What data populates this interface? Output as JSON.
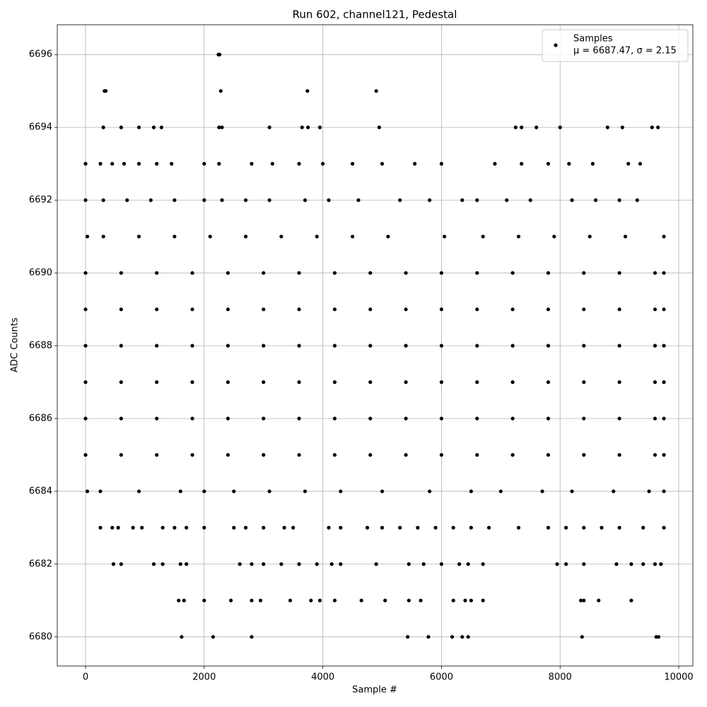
{
  "chart_data": {
    "type": "scatter",
    "title": "Run 602, channel121, Pedestal",
    "x_label": "Sample #",
    "y_label": "ADC Counts",
    "xlim": [
      -477,
      10238
    ],
    "ylim": [
      6679.2,
      6696.82
    ],
    "xticks": [
      0,
      2000,
      4000,
      6000,
      8000,
      10000
    ],
    "yticks": [
      6680,
      6682,
      6684,
      6686,
      6688,
      6690,
      6692,
      6694,
      6696
    ],
    "grid": true,
    "legend_position": "upper right",
    "legend_note": "μ = 6687.47, σ = 2.15",
    "series": [
      {
        "name": "Samples",
        "color": "#000000",
        "x": [
          0,
          600,
          1200,
          1800,
          2400,
          3000,
          3600,
          4200,
          4800,
          5400,
          6000,
          6600,
          7200,
          7800,
          8400,
          9000,
          9600,
          9750,
          0,
          600,
          1200,
          1800,
          2400,
          3000,
          3600,
          4200,
          4800,
          5400,
          6000,
          6600,
          7200,
          7800,
          8400,
          9000,
          9600,
          9750,
          0,
          600,
          1200,
          1800,
          2400,
          3000,
          3600,
          4200,
          4800,
          5400,
          6000,
          6600,
          7200,
          7800,
          8400,
          9000,
          9600,
          9750,
          0,
          600,
          1200,
          1800,
          2400,
          3000,
          3600,
          4200,
          4800,
          5400,
          6000,
          6600,
          7200,
          7800,
          8400,
          9000,
          9600,
          9750,
          0,
          600,
          1200,
          1800,
          2400,
          3000,
          3600,
          4200,
          4800,
          5400,
          6000,
          6600,
          7200,
          7800,
          8400,
          9000,
          9600,
          9750,
          0,
          600,
          1200,
          1800,
          2400,
          3000,
          3600,
          4200,
          4800,
          5400,
          6000,
          6600,
          7200,
          7800,
          8400,
          9000,
          9600,
          9750,
          30,
          300,
          900,
          1500,
          2100,
          2700,
          3300,
          3900,
          4500,
          5100,
          6050,
          6700,
          7300,
          7900,
          8500,
          9100,
          9750,
          30,
          250,
          900,
          1600,
          2000,
          2500,
          3100,
          3700,
          4300,
          5000,
          5800,
          6500,
          7000,
          7700,
          8200,
          8900,
          9500,
          9750,
          0,
          300,
          700,
          1100,
          1500,
          2000,
          2300,
          2700,
          3100,
          3700,
          4100,
          4600,
          5300,
          5800,
          6350,
          6600,
          7100,
          7500,
          8200,
          8600,
          9000,
          9300,
          0,
          250,
          450,
          650,
          900,
          1200,
          1450,
          2000,
          2250,
          2800,
          3150,
          3600,
          4000,
          4500,
          5000,
          5550,
          6000,
          6900,
          7350,
          7800,
          8150,
          8550,
          9150,
          9350,
          300,
          600,
          900,
          1150,
          1280,
          2250,
          2300,
          3100,
          3650,
          3750,
          3950,
          4950,
          7250,
          7350,
          7600,
          8000,
          8800,
          9050,
          9550,
          9650,
          320,
          340,
          2280,
          3740,
          4900,
          2240,
          2260,
          250,
          450,
          550,
          800,
          950,
          1300,
          1500,
          1700,
          2000,
          2500,
          2700,
          3000,
          3350,
          3500,
          4100,
          4300,
          4750,
          5000,
          5300,
          5600,
          5900,
          6200,
          6500,
          6800,
          7300,
          7800,
          8100,
          8400,
          8700,
          9000,
          9400,
          9750,
          470,
          600,
          1150,
          1300,
          1600,
          1700,
          2600,
          2800,
          3000,
          3300,
          3600,
          3900,
          4150,
          4300,
          4900,
          5450,
          5700,
          6000,
          6300,
          6450,
          6700,
          7950,
          8100,
          8400,
          8950,
          9200,
          9400,
          9600,
          9700,
          1570,
          1660,
          2000,
          2450,
          2800,
          2950,
          3450,
          3800,
          3950,
          4200,
          4650,
          5050,
          5450,
          5650,
          6200,
          6400,
          6500,
          6700,
          8350,
          8400,
          8650,
          9200,
          1620,
          2150,
          2800,
          5430,
          5780,
          6180,
          6350,
          6450,
          8370,
          9620,
          9660
        ],
        "y": [
          6685,
          6685,
          6685,
          6685,
          6685,
          6685,
          6685,
          6685,
          6685,
          6685,
          6685,
          6685,
          6685,
          6685,
          6685,
          6685,
          6685,
          6685,
          6686,
          6686,
          6686,
          6686,
          6686,
          6686,
          6686,
          6686,
          6686,
          6686,
          6686,
          6686,
          6686,
          6686,
          6686,
          6686,
          6686,
          6686,
          6687,
          6687,
          6687,
          6687,
          6687,
          6687,
          6687,
          6687,
          6687,
          6687,
          6687,
          6687,
          6687,
          6687,
          6687,
          6687,
          6687,
          6687,
          6688,
          6688,
          6688,
          6688,
          6688,
          6688,
          6688,
          6688,
          6688,
          6688,
          6688,
          6688,
          6688,
          6688,
          6688,
          6688,
          6688,
          6688,
          6689,
          6689,
          6689,
          6689,
          6689,
          6689,
          6689,
          6689,
          6689,
          6689,
          6689,
          6689,
          6689,
          6689,
          6689,
          6689,
          6689,
          6689,
          6690,
          6690,
          6690,
          6690,
          6690,
          6690,
          6690,
          6690,
          6690,
          6690,
          6690,
          6690,
          6690,
          6690,
          6690,
          6690,
          6690,
          6690,
          6691,
          6691,
          6691,
          6691,
          6691,
          6691,
          6691,
          6691,
          6691,
          6691,
          6691,
          6691,
          6691,
          6691,
          6691,
          6691,
          6691,
          6684,
          6684,
          6684,
          6684,
          6684,
          6684,
          6684,
          6684,
          6684,
          6684,
          6684,
          6684,
          6684,
          6684,
          6684,
          6684,
          6684,
          6684,
          6692,
          6692,
          6692,
          6692,
          6692,
          6692,
          6692,
          6692,
          6692,
          6692,
          6692,
          6692,
          6692,
          6692,
          6692,
          6692,
          6692,
          6692,
          6692,
          6692,
          6692,
          6692,
          6693,
          6693,
          6693,
          6693,
          6693,
          6693,
          6693,
          6693,
          6693,
          6693,
          6693,
          6693,
          6693,
          6693,
          6693,
          6693,
          6693,
          6693,
          6693,
          6693,
          6693,
          6693,
          6693,
          6693,
          6694,
          6694,
          6694,
          6694,
          6694,
          6694,
          6694,
          6694,
          6694,
          6694,
          6694,
          6694,
          6694,
          6694,
          6694,
          6694,
          6694,
          6694,
          6694,
          6694,
          6695,
          6695,
          6695,
          6695,
          6695,
          6696,
          6696,
          6683,
          6683,
          6683,
          6683,
          6683,
          6683,
          6683,
          6683,
          6683,
          6683,
          6683,
          6683,
          6683,
          6683,
          6683,
          6683,
          6683,
          6683,
          6683,
          6683,
          6683,
          6683,
          6683,
          6683,
          6683,
          6683,
          6683,
          6683,
          6683,
          6683,
          6683,
          6683,
          6682,
          6682,
          6682,
          6682,
          6682,
          6682,
          6682,
          6682,
          6682,
          6682,
          6682,
          6682,
          6682,
          6682,
          6682,
          6682,
          6682,
          6682,
          6682,
          6682,
          6682,
          6682,
          6682,
          6682,
          6682,
          6682,
          6682,
          6682,
          6682,
          6681,
          6681,
          6681,
          6681,
          6681,
          6681,
          6681,
          6681,
          6681,
          6681,
          6681,
          6681,
          6681,
          6681,
          6681,
          6681,
          6681,
          6681,
          6681,
          6681,
          6681,
          6681,
          6680,
          6680,
          6680,
          6680,
          6680,
          6680,
          6680,
          6680,
          6680,
          6680,
          6680
        ]
      }
    ]
  }
}
